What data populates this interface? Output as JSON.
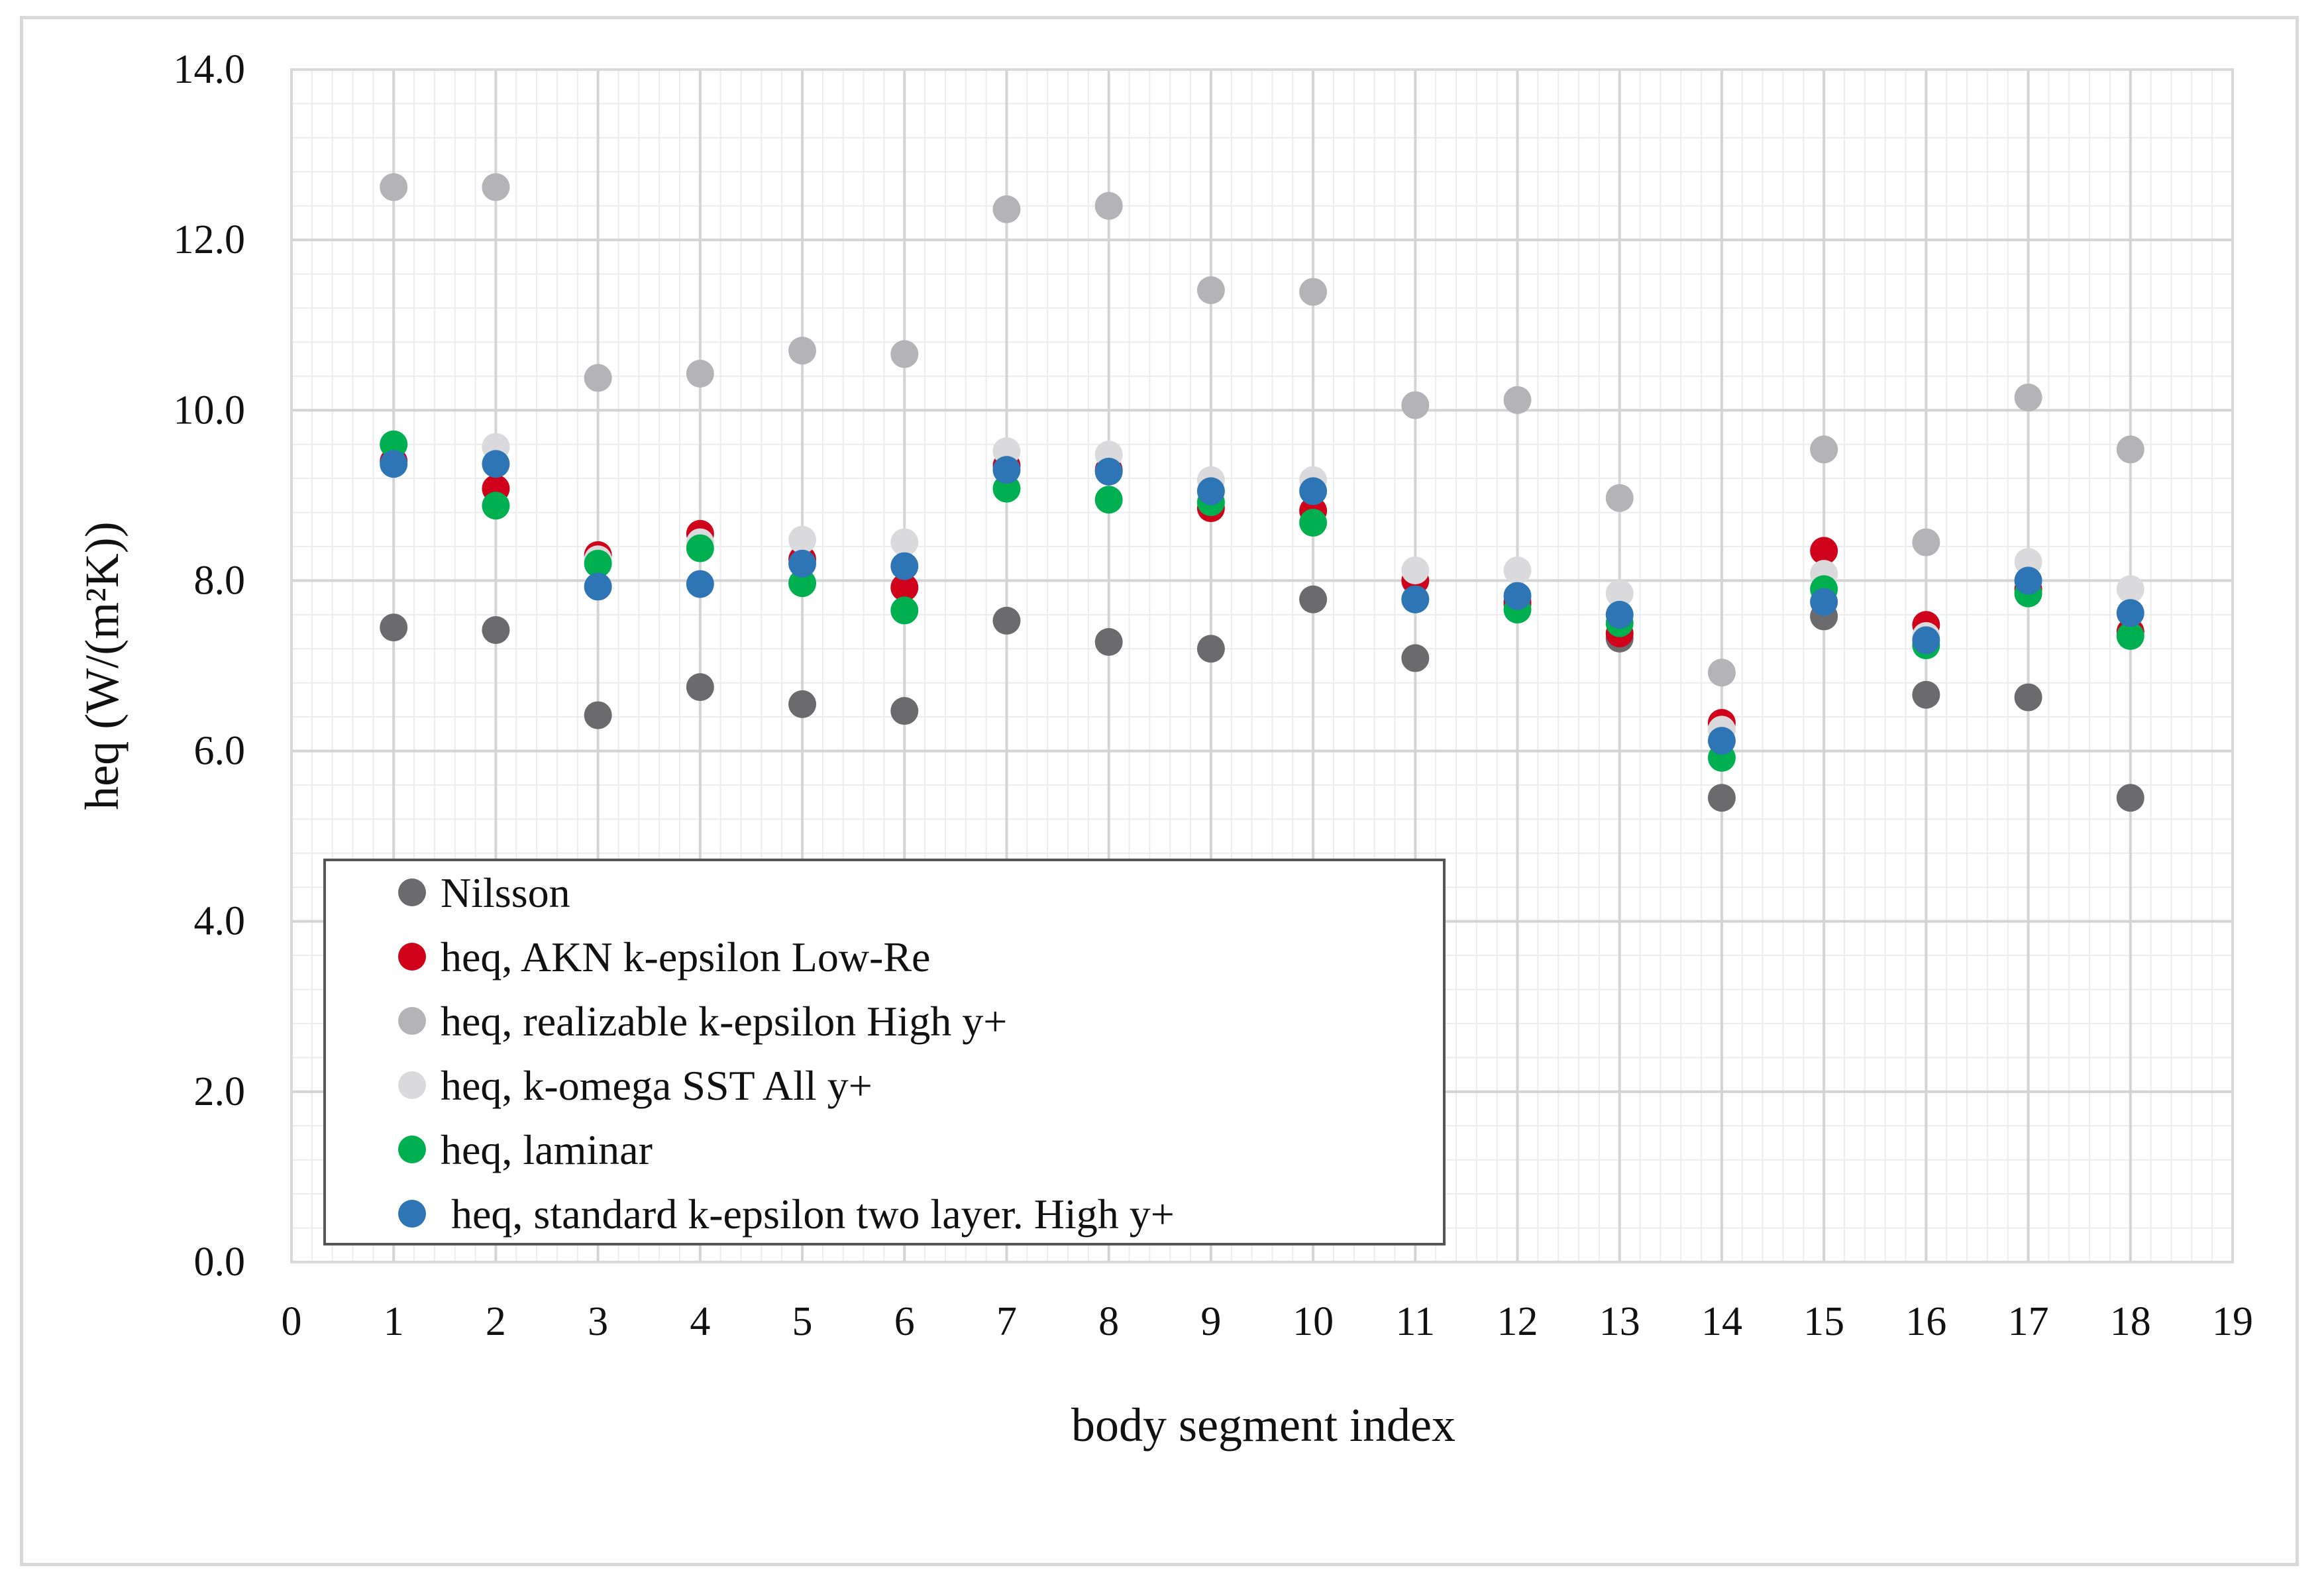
{
  "chart_data": {
    "type": "scatter",
    "title": "",
    "xlabel": "body segment index",
    "ylabel": "heq (W/(m²K))",
    "xlim": [
      0,
      19
    ],
    "ylim": [
      0,
      14
    ],
    "x_ticks": [
      "0",
      "1",
      "2",
      "3",
      "4",
      "5",
      "6",
      "7",
      "8",
      "9",
      "10",
      "11",
      "12",
      "13",
      "14",
      "15",
      "16",
      "17",
      "18",
      "19"
    ],
    "y_ticks": [
      "0.0",
      "2.0",
      "4.0",
      "6.0",
      "8.0",
      "10.0",
      "12.0",
      "14.0"
    ],
    "grid": true,
    "legend_position": "bottom-left",
    "x": [
      1,
      2,
      3,
      4,
      5,
      6,
      7,
      8,
      9,
      10,
      11,
      12,
      13,
      14,
      15,
      16,
      17,
      18
    ],
    "series": [
      {
        "name": "Nilsson",
        "color": "#6b6b6e",
        "values": [
          7.45,
          7.42,
          6.42,
          6.75,
          6.55,
          6.47,
          7.53,
          7.28,
          7.2,
          7.78,
          7.09,
          7.72,
          7.32,
          5.45,
          7.58,
          6.66,
          6.63,
          5.45
        ]
      },
      {
        "name": "heq, AKN k-epsilon Low-Re",
        "color": "#d0021b",
        "values": [
          9.4,
          9.08,
          8.3,
          8.55,
          8.25,
          7.92,
          9.35,
          9.3,
          8.85,
          8.82,
          8.0,
          7.75,
          7.38,
          6.33,
          8.35,
          7.48,
          7.9,
          7.4
        ]
      },
      {
        "name": "heq, realizable k-epsilon High y+",
        "color": "#b3b3b8",
        "values": [
          12.62,
          12.62,
          10.38,
          10.43,
          10.7,
          10.66,
          12.36,
          12.4,
          11.41,
          11.39,
          10.06,
          10.12,
          8.97,
          6.92,
          9.54,
          8.45,
          10.15,
          9.54
        ]
      },
      {
        "name": "heq, k-omega SST All y+",
        "color": "#dadadd",
        "values": [
          9.6,
          9.57,
          8.25,
          8.45,
          8.48,
          8.45,
          9.52,
          9.48,
          9.18,
          9.18,
          8.12,
          8.12,
          7.85,
          6.25,
          8.08,
          7.35,
          8.22,
          7.9
        ]
      },
      {
        "name": "heq, laminar",
        "color": "#00b050",
        "values": [
          9.6,
          8.88,
          8.2,
          8.38,
          7.97,
          7.65,
          9.08,
          8.95,
          8.92,
          8.68,
          7.78,
          7.66,
          7.5,
          5.92,
          7.9,
          7.24,
          7.85,
          7.35
        ]
      },
      {
        "name": " heq, standard k-epsilon two layer. High y+",
        "color": "#2e75b6",
        "values": [
          9.37,
          9.37,
          7.93,
          7.96,
          8.2,
          8.17,
          9.3,
          9.28,
          9.05,
          9.05,
          7.78,
          7.82,
          7.6,
          6.12,
          7.75,
          7.3,
          8.0,
          7.62
        ]
      }
    ]
  }
}
